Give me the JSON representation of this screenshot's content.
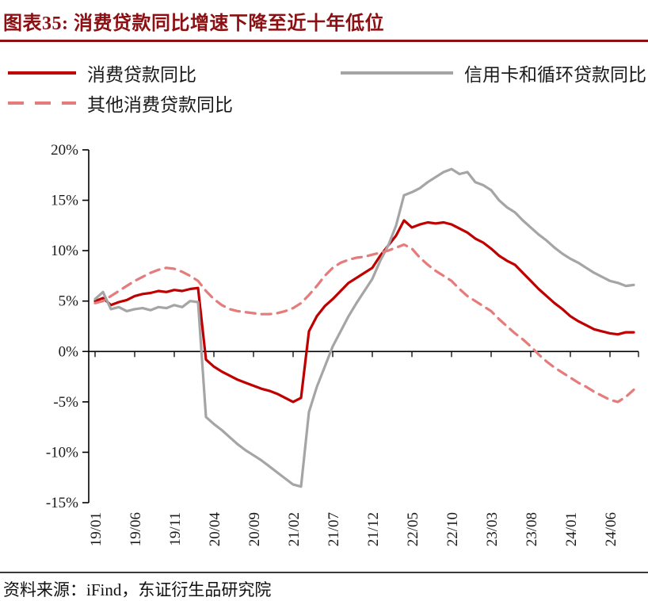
{
  "figure": {
    "title": "图表35: 消费贷款同比增速下降至近十年低位",
    "source": "资料来源：iFind，东证衍生品研究院"
  },
  "colors": {
    "title_red": "#8c1013",
    "consumer_red": "#c00000",
    "credit_card_gray": "#a5a5a5",
    "other_loans_pink": "#e57b7b",
    "axis_black": "#000000"
  },
  "chart_data": {
    "type": "line",
    "title": "消费贷款同比增速下降至近十年低位",
    "xlabel": "",
    "ylabel": "",
    "ylim": [
      -15,
      20
    ],
    "y_ticks": [
      20,
      15,
      10,
      5,
      0,
      -5,
      -10,
      -15
    ],
    "y_tick_suffix": "%",
    "grid": false,
    "legend_position": "top",
    "x_tick_step": 5,
    "x_tick_labels": [
      "19/01",
      "19/06",
      "19/11",
      "20/04",
      "20/09",
      "21/02",
      "21/07",
      "21/12",
      "22/05",
      "22/10",
      "23/03",
      "23/08",
      "24/01",
      "24/06"
    ],
    "x": [
      "19/01",
      "19/02",
      "19/03",
      "19/04",
      "19/05",
      "19/06",
      "19/07",
      "19/08",
      "19/09",
      "19/10",
      "19/11",
      "19/12",
      "20/01",
      "20/02",
      "20/03",
      "20/04",
      "20/05",
      "20/06",
      "20/07",
      "20/08",
      "20/09",
      "20/10",
      "20/11",
      "20/12",
      "21/01",
      "21/02",
      "21/03",
      "21/04",
      "21/05",
      "21/06",
      "21/07",
      "21/08",
      "21/09",
      "21/10",
      "21/11",
      "21/12",
      "22/01",
      "22/02",
      "22/03",
      "22/04",
      "22/05",
      "22/06",
      "22/07",
      "22/08",
      "22/09",
      "22/10",
      "22/11",
      "22/12",
      "23/01",
      "23/02",
      "23/03",
      "23/04",
      "23/05",
      "23/06",
      "23/07",
      "23/08",
      "23/09",
      "23/10",
      "23/11",
      "23/12",
      "24/01",
      "24/02",
      "24/03",
      "24/04",
      "24/05",
      "24/06",
      "24/07",
      "24/08",
      "24/09"
    ],
    "series": [
      {
        "name": "消费贷款同比",
        "color": "#c00000",
        "dash": false,
        "values": [
          5.0,
          5.3,
          4.6,
          4.9,
          5.1,
          5.5,
          5.7,
          5.8,
          6.0,
          5.9,
          6.1,
          6.0,
          6.2,
          6.3,
          -0.8,
          -1.5,
          -2.0,
          -2.4,
          -2.8,
          -3.1,
          -3.4,
          -3.7,
          -3.9,
          -4.2,
          -4.6,
          -5.0,
          -4.6,
          2.0,
          3.5,
          4.5,
          5.2,
          6.0,
          6.8,
          7.3,
          7.8,
          8.3,
          9.5,
          10.5,
          11.5,
          13.0,
          12.3,
          12.6,
          12.8,
          12.7,
          12.8,
          12.6,
          12.2,
          11.8,
          11.2,
          10.8,
          10.2,
          9.5,
          9.0,
          8.6,
          7.8,
          7.0,
          6.2,
          5.5,
          4.8,
          4.2,
          3.5,
          3.0,
          2.6,
          2.2,
          2.0,
          1.8,
          1.7,
          1.9,
          1.9
        ]
      },
      {
        "name": "信用卡和循环贷款同比",
        "color": "#a5a5a5",
        "dash": false,
        "values": [
          5.2,
          5.9,
          4.2,
          4.4,
          4.0,
          4.2,
          4.3,
          4.1,
          4.4,
          4.3,
          4.6,
          4.4,
          5.0,
          4.9,
          -6.5,
          -7.2,
          -7.8,
          -8.5,
          -9.2,
          -9.8,
          -10.3,
          -10.8,
          -11.4,
          -12.0,
          -12.6,
          -13.2,
          -13.4,
          -6.0,
          -3.5,
          -1.5,
          0.5,
          2.0,
          3.5,
          4.8,
          6.0,
          7.2,
          9.0,
          10.5,
          12.5,
          15.5,
          15.8,
          16.2,
          16.8,
          17.3,
          17.8,
          18.1,
          17.6,
          17.8,
          16.8,
          16.5,
          16.0,
          15.0,
          14.3,
          13.8,
          13.0,
          12.3,
          11.6,
          11.0,
          10.3,
          9.7,
          9.2,
          8.8,
          8.3,
          7.8,
          7.4,
          7.0,
          6.8,
          6.5,
          6.6
        ]
      },
      {
        "name": "其他消费贷款同比",
        "color": "#e57b7b",
        "dash": true,
        "values": [
          4.8,
          5.0,
          5.5,
          6.0,
          6.5,
          7.0,
          7.4,
          7.8,
          8.1,
          8.3,
          8.2,
          7.9,
          7.5,
          7.0,
          6.0,
          5.2,
          4.6,
          4.2,
          4.0,
          3.9,
          3.8,
          3.7,
          3.7,
          3.8,
          4.0,
          4.3,
          4.8,
          5.6,
          6.5,
          7.5,
          8.3,
          8.8,
          9.1,
          9.3,
          9.4,
          9.6,
          9.8,
          10.0,
          10.3,
          10.6,
          10.2,
          9.3,
          8.6,
          8.0,
          7.5,
          7.0,
          6.2,
          5.5,
          5.0,
          4.5,
          4.0,
          3.2,
          2.5,
          1.8,
          1.2,
          0.5,
          -0.3,
          -1.0,
          -1.6,
          -2.1,
          -2.6,
          -3.1,
          -3.5,
          -4.0,
          -4.4,
          -4.8,
          -5.0,
          -4.5,
          -3.8
        ]
      }
    ]
  }
}
